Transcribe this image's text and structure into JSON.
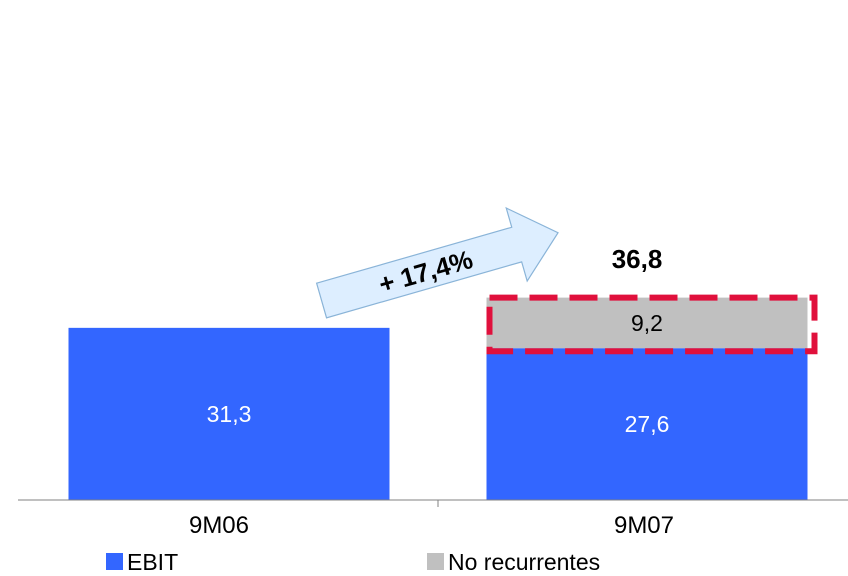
{
  "chart_data": {
    "type": "bar",
    "stacked": true,
    "categories": [
      "9M06",
      "9M07"
    ],
    "series": [
      {
        "name": "EBIT",
        "values": [
          31.3,
          27.6
        ],
        "labels": [
          "31,3",
          "27,6"
        ],
        "color": "#3366FF"
      },
      {
        "name": "No recurrentes",
        "values": [
          0,
          9.2
        ],
        "labels": [
          "",
          "9,2"
        ],
        "color": "#C0C0C0"
      }
    ],
    "totals": [
      null,
      "36,8"
    ],
    "annotation": {
      "text": "+ 17,4%",
      "shape": "arrow",
      "fill": "#DDEEFF",
      "stroke": "#8AB4D8"
    },
    "highlight": {
      "category": "9M07",
      "series": "No recurrentes",
      "style": "dashed",
      "color": "#E0103C"
    },
    "legend": {
      "position": "bottom"
    },
    "grid": false
  }
}
